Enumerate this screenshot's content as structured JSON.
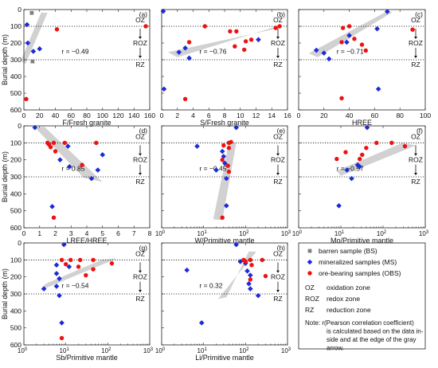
{
  "zones": {
    "oz": "OZ",
    "roz": "ROZ",
    "rz": "RZ",
    "oz_depth": 100,
    "rz_depth": 300
  },
  "ylabel": "Burial depth (m)",
  "yticks": [
    0,
    100,
    200,
    300,
    400,
    500,
    600
  ],
  "ylim": [
    0,
    600
  ],
  "legend": {
    "items": [
      {
        "key": "BS",
        "label": "barren sample (BS)",
        "color": "#808080",
        "marker": "square"
      },
      {
        "key": "MS",
        "label": "mineralized samples (MS)",
        "color": "#1b2bd6",
        "marker": "diamond"
      },
      {
        "key": "OBS",
        "label": "ore-bearing samples (OBS)",
        "color": "#ee1111",
        "marker": "circle"
      }
    ],
    "zones": [
      {
        "abbr": "OZ",
        "desc": "oxidation zone"
      },
      {
        "abbr": "ROZ",
        "desc": "redox zone"
      },
      {
        "abbr": "RZ",
        "desc": "reduction zone"
      }
    ],
    "note": [
      "Note:  r(Pearson correlation coefficient)",
      "is calculated based on the data in-",
      "side and at the edge of the gray",
      "arrow."
    ]
  },
  "chart_data": [
    {
      "type": "scatter",
      "panel": "(a)",
      "xlabel": "F/Fresh granite",
      "xscale": "linear",
      "xlim": [
        0,
        160
      ],
      "xticks": [
        0,
        20,
        40,
        60,
        80,
        100,
        120,
        140,
        160
      ],
      "ylim": [
        0,
        600
      ],
      "r": "r = −0.49",
      "series": [
        {
          "key": "BS",
          "points": [
            [
              10,
              20
            ],
            [
              11,
              310
            ]
          ]
        },
        {
          "key": "MS",
          "points": [
            [
              5,
              200
            ],
            [
              12,
              250
            ],
            [
              20,
              235
            ],
            [
              4,
              90
            ]
          ]
        },
        {
          "key": "OBS",
          "points": [
            [
              42,
              118
            ],
            [
              3,
              535
            ],
            [
              155,
              100
            ]
          ]
        }
      ]
    },
    {
      "type": "scatter",
      "panel": "(b)",
      "xlabel": "S/Fresh granite",
      "xscale": "linear",
      "xlim": [
        0,
        16
      ],
      "xticks": [
        0,
        2,
        4,
        6,
        8,
        10,
        12,
        14,
        16
      ],
      "ylim": [
        0,
        600
      ],
      "r": "r = −0.76",
      "series": [
        {
          "key": "MS",
          "points": [
            [
              0.2,
              10
            ],
            [
              2.2,
              255
            ],
            [
              3,
              230
            ],
            [
              3.5,
              290
            ],
            [
              12.3,
              180
            ],
            [
              0.3,
              475
            ]
          ]
        },
        {
          "key": "OBS",
          "points": [
            [
              5.5,
              100
            ],
            [
              8.7,
              130
            ],
            [
              9.5,
              130
            ],
            [
              3.5,
              195
            ],
            [
              9.3,
              220
            ],
            [
              10.7,
              190
            ],
            [
              11.4,
              180
            ],
            [
              10.5,
              240
            ],
            [
              14.5,
              110
            ],
            [
              15,
              100
            ],
            [
              3,
              535
            ]
          ]
        }
      ]
    },
    {
      "type": "scatter",
      "panel": "(c)",
      "xlabel": "HREE",
      "xscale": "linear",
      "xlim": [
        0,
        100
      ],
      "xticks": [
        0,
        20,
        40,
        60,
        80,
        100
      ],
      "ylim": [
        0,
        600
      ],
      "r": "r = −0.71",
      "series": [
        {
          "key": "MS",
          "points": [
            [
              70,
              12
            ],
            [
              14,
              243
            ],
            [
              20,
              260
            ],
            [
              24,
              295
            ],
            [
              38,
              195
            ],
            [
              40,
              155
            ],
            [
              62,
              115
            ],
            [
              63,
              475
            ]
          ]
        },
        {
          "key": "OBS",
          "points": [
            [
              35,
              110
            ],
            [
              40,
              100
            ],
            [
              34,
              195
            ],
            [
              44,
              175
            ],
            [
              50,
              210
            ],
            [
              53,
              245
            ],
            [
              90,
              120
            ],
            [
              34,
              530
            ]
          ]
        }
      ]
    },
    {
      "type": "scatter",
      "panel": "(d)",
      "xlabel": "LREE/HREE",
      "xscale": "linear",
      "xlim": [
        0,
        8
      ],
      "xticks": [
        0,
        1,
        2,
        3,
        4,
        5,
        6,
        7,
        8
      ],
      "ylim": [
        0,
        600
      ],
      "r": "r = 0.85",
      "series": [
        {
          "key": "MS",
          "points": [
            [
              0.7,
              10
            ],
            [
              2.8,
              120
            ],
            [
              2.3,
              200
            ],
            [
              2.9,
              240
            ],
            [
              4.3,
              310
            ],
            [
              5,
              170
            ],
            [
              4.7,
              260
            ],
            [
              1.8,
              475
            ]
          ]
        },
        {
          "key": "OBS",
          "points": [
            [
              1.5,
              100
            ],
            [
              1.6,
              110
            ],
            [
              1.7,
              125
            ],
            [
              1.9,
              100
            ],
            [
              2,
              150
            ],
            [
              2.6,
              100
            ],
            [
              4.6,
              100
            ],
            [
              3.7,
              230
            ],
            [
              1.9,
              540
            ]
          ]
        }
      ]
    },
    {
      "type": "scatter",
      "panel": "(e)",
      "xlabel": "W/Primitive  mantle",
      "xscale": "log",
      "xlim": [
        1,
        1000
      ],
      "xticks": [
        1,
        10,
        100,
        1000
      ],
      "ylim": [
        0,
        600
      ],
      "r": "r = −0.45",
      "series": [
        {
          "key": "MS",
          "points": [
            [
              60,
              10
            ],
            [
              7,
              120
            ],
            [
              30,
              180
            ],
            [
              32,
              220
            ],
            [
              20,
              260
            ],
            [
              35,
              310
            ],
            [
              35,
              470
            ],
            [
              28,
              150
            ]
          ]
        },
        {
          "key": "OBS",
          "points": [
            [
              40,
              100
            ],
            [
              45,
              95
            ],
            [
              30,
              115
            ],
            [
              40,
              130
            ],
            [
              28,
              200
            ],
            [
              38,
              235
            ],
            [
              40,
              270
            ],
            [
              28,
              540
            ]
          ]
        }
      ]
    },
    {
      "type": "scatter",
      "panel": "(f)",
      "xlabel": "Mo/Primitive  mantle",
      "xscale": "log",
      "xlim": [
        1,
        1000
      ],
      "xticks": [
        1,
        10,
        100,
        1000
      ],
      "ylim": [
        0,
        600
      ],
      "r": "r = −0.57",
      "series": [
        {
          "key": "MS",
          "points": [
            [
              42,
              10
            ],
            [
              14,
              260
            ],
            [
              28,
              240
            ],
            [
              25,
              230
            ],
            [
              18,
              310
            ],
            [
              9,
              470
            ]
          ]
        },
        {
          "key": "OBS",
          "points": [
            [
              70,
              100
            ],
            [
              160,
              100
            ],
            [
              330,
              120
            ],
            [
              40,
              130
            ],
            [
              8,
              195
            ],
            [
              13,
              155
            ],
            [
              28,
              195
            ],
            [
              32,
              170
            ]
          ]
        }
      ]
    },
    {
      "type": "scatter",
      "panel": "(g)",
      "xlabel": "Sb/Primitive  mantle",
      "xscale": "log",
      "xlim": [
        1,
        1000
      ],
      "xticks": [
        1,
        10,
        100,
        1000
      ],
      "ylim": [
        0,
        600
      ],
      "r": "r = −0.54",
      "series": [
        {
          "key": "MS",
          "points": [
            [
              9,
              10
            ],
            [
              3,
              270
            ],
            [
              6,
              180
            ],
            [
              6,
              130
            ],
            [
              7,
              210
            ],
            [
              6,
              255
            ],
            [
              7,
              310
            ],
            [
              8,
              470
            ],
            [
              12,
              140
            ]
          ]
        },
        {
          "key": "OBS",
          "points": [
            [
              8,
              100
            ],
            [
              10,
              125
            ],
            [
              13,
              100
            ],
            [
              22,
              100
            ],
            [
              45,
              100
            ],
            [
              45,
              155
            ],
            [
              20,
              140
            ],
            [
              30,
              190
            ],
            [
              8,
              560
            ],
            [
              125,
              120
            ]
          ]
        }
      ]
    },
    {
      "type": "scatter",
      "panel": "(h)",
      "xlabel": "Li/Primitive  mantle",
      "xscale": "log",
      "xlim": [
        1,
        1000
      ],
      "xticks": [
        1,
        10,
        100,
        1000
      ],
      "ylim": [
        0,
        600
      ],
      "r": "r = 0.32",
      "series": [
        {
          "key": "MS",
          "points": [
            [
              60,
              10
            ],
            [
              4,
              160
            ],
            [
              75,
              110
            ],
            [
              100,
              120
            ],
            [
              130,
              190
            ],
            [
              120,
              240
            ],
            [
              130,
              270
            ],
            [
              200,
              310
            ],
            [
              9,
              470
            ],
            [
              110,
              165
            ]
          ]
        },
        {
          "key": "OBS",
          "points": [
            [
              90,
              100
            ],
            [
              130,
              100
            ],
            [
              140,
              130
            ],
            [
              250,
              100
            ],
            [
              300,
              195
            ],
            [
              100,
              110
            ],
            [
              130,
              215
            ]
          ]
        }
      ]
    }
  ]
}
